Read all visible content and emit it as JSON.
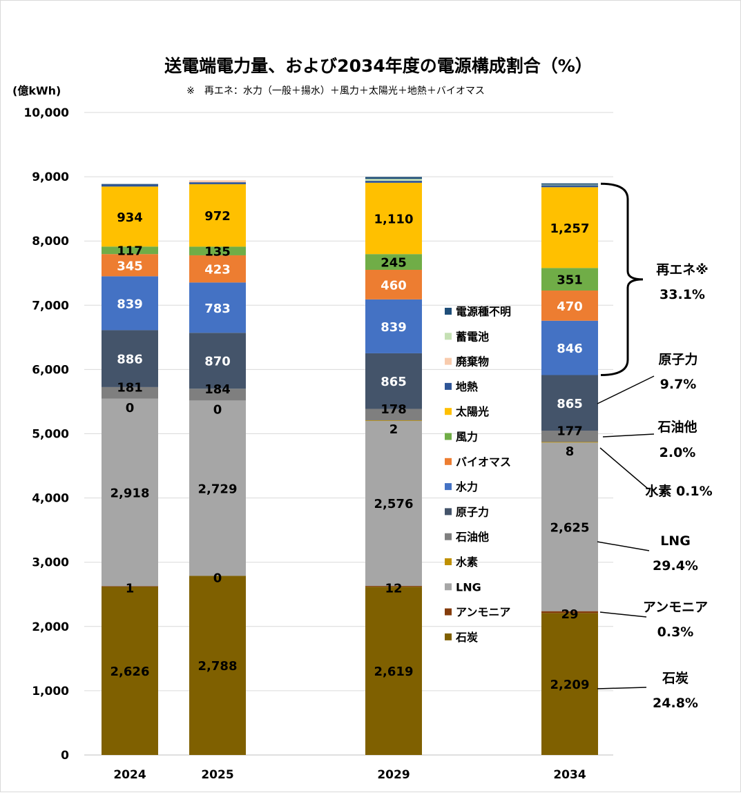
{
  "chart_data": {
    "type": "bar",
    "stacked": true,
    "title": "送電端電力量、および2034年度の電源構成割合（%）",
    "note": "※　再エネ：水力（一般＋揚水）＋風力＋太陽光＋地熱＋バイオマス",
    "ylabel": "(億kWh)",
    "ylim": [
      0,
      10000
    ],
    "yticks": [
      "0",
      "1,000",
      "2,000",
      "3,000",
      "4,000",
      "5,000",
      "6,000",
      "7,000",
      "8,000",
      "9,000",
      "10,000"
    ],
    "grid": true,
    "legend_position": "inside-right",
    "categories": [
      "2024",
      "2025",
      "2029",
      "2034"
    ],
    "series": [
      {
        "name": "石炭",
        "key": "coal",
        "color": "#7f6000",
        "values": [
          2626,
          2788,
          2619,
          2209
        ],
        "labels": [
          "2,626",
          "2,788",
          "2,619",
          "2,209"
        ],
        "label_color": "#000000"
      },
      {
        "name": "アンモニア",
        "key": "ammonia",
        "color": "#843c0c",
        "values": [
          1,
          0,
          12,
          29
        ],
        "labels": [
          "1",
          "0",
          "12",
          "29"
        ],
        "label_color": "#000000"
      },
      {
        "name": "LNG",
        "key": "lng",
        "color": "#a6a6a6",
        "values": [
          2918,
          2729,
          2576,
          2625
        ],
        "labels": [
          "2,918",
          "2,729",
          "2,576",
          "2,625"
        ],
        "label_color": "#000000"
      },
      {
        "name": "水素",
        "key": "hydrogen",
        "color": "#bf9000",
        "values": [
          0,
          0,
          2,
          8
        ],
        "labels": [
          "0",
          "0",
          "2",
          "8"
        ],
        "label_color": "#000000"
      },
      {
        "name": "石油他",
        "key": "oil",
        "color": "#7f7f7f",
        "values": [
          181,
          184,
          178,
          177
        ],
        "labels": [
          "181",
          "184",
          "178",
          "177"
        ],
        "label_color": "#000000"
      },
      {
        "name": "原子力",
        "key": "nuclear",
        "color": "#44546a",
        "values": [
          886,
          870,
          865,
          865
        ],
        "labels": [
          "886",
          "870",
          "865",
          "865"
        ],
        "label_color": "#ffffff"
      },
      {
        "name": "水力",
        "key": "hydro",
        "color": "#4472c4",
        "values": [
          839,
          783,
          839,
          846
        ],
        "labels": [
          "839",
          "783",
          "839",
          "846"
        ],
        "label_color": "#ffffff"
      },
      {
        "name": "バイオマス",
        "key": "biomass",
        "color": "#ed7d31",
        "values": [
          345,
          423,
          460,
          470
        ],
        "labels": [
          "345",
          "423",
          "460",
          "470"
        ],
        "label_color": "#ffffff"
      },
      {
        "name": "風力",
        "key": "wind",
        "color": "#70ad47",
        "values": [
          117,
          135,
          245,
          351
        ],
        "labels": [
          "117",
          "135",
          "245",
          "351"
        ],
        "label_color": "#000000"
      },
      {
        "name": "太陽光",
        "key": "solar",
        "color": "#ffc000",
        "values": [
          934,
          972,
          1110,
          1257
        ],
        "labels": [
          "934",
          "972",
          "1,110",
          "1,257"
        ],
        "label_color": "#000000"
      },
      {
        "name": "地熱",
        "key": "geothermal",
        "color": "#2f5597",
        "values": [
          30,
          30,
          30,
          30
        ]
      },
      {
        "name": "廃棄物",
        "key": "waste",
        "color": "#f8cbad",
        "values": [
          0,
          30,
          0,
          0
        ]
      },
      {
        "name": "蓄電池",
        "key": "battery",
        "color": "#c5e0b4",
        "values": [
          0,
          0,
          30,
          10
        ]
      },
      {
        "name": "電源種不明",
        "key": "unknown",
        "color": "#1f4e79",
        "values": [
          10,
          0,
          30,
          20
        ]
      }
    ],
    "legend_order": [
      "電源種不明",
      "蓄電池",
      "廃棄物",
      "地熱",
      "太陽光",
      "風力",
      "バイオマス",
      "水力",
      "原子力",
      "石油他",
      "水素",
      "LNG",
      "アンモニア",
      "石炭"
    ],
    "annotations": [
      {
        "label": "再エネ※",
        "value": "33.1%"
      },
      {
        "label": "原子力",
        "value": "9.7%"
      },
      {
        "label": "石油他",
        "value": "2.0%"
      },
      {
        "label": "水素",
        "value": "0.1%"
      },
      {
        "label": "LNG",
        "value": "29.4%"
      },
      {
        "label": "アンモニア",
        "value": "0.3%"
      },
      {
        "label": "石炭",
        "value": "24.8%"
      }
    ]
  }
}
